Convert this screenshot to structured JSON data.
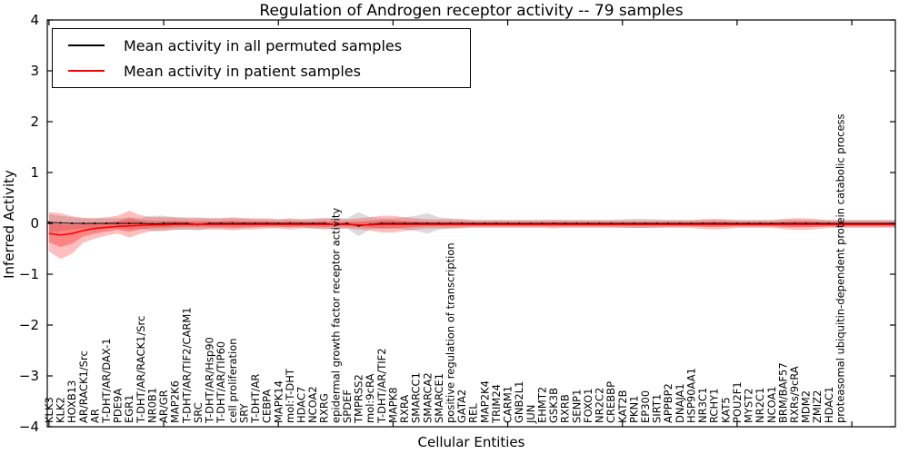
{
  "chart_data": {
    "type": "line",
    "title": "Regulation of Androgen receptor activity -- 79 samples",
    "xlabel": "Cellular Entities",
    "ylabel": "Inferred Activity",
    "ylim": [
      -4,
      4
    ],
    "xlim": [
      -0.15,
      73.8
    ],
    "y_ticks": [
      4,
      3,
      2,
      1,
      0,
      -1,
      -2,
      -3,
      -4
    ],
    "x_axis_ticks": [
      0,
      10,
      20,
      30,
      40,
      50,
      60,
      70
    ],
    "grid": false,
    "legend": {
      "position": "upper-left",
      "entries": [
        {
          "label": "Mean activity in all permuted samples",
          "color": "#000000"
        },
        {
          "label": "Mean activity in patient samples",
          "color": "#ff0000"
        }
      ]
    },
    "colors": {
      "permuted_line": "#000000",
      "permuted_band": "#999999",
      "patient_line": "#ff0000",
      "patient_band": "#ff0000",
      "axis": "#000000"
    },
    "inner_band_fraction": 0.5,
    "categories": [
      "KLK3",
      "KLK2",
      "HOXB13",
      "AR/RACK1/Src",
      "AR",
      "T-DHT/AR/DAX-1",
      "PDE9A",
      "EGR1",
      "T-DHT/AR/RACK1/Src",
      "NR0B1",
      "AR/GR",
      "MAP2K6",
      "T-DHT/AR/TIF2/CARM1",
      "SRC",
      "T-DHT/AR/Hsp90",
      "T-DHT/AR/TIP60",
      "cell proliferation",
      "SRY",
      "T-DHT/AR",
      "CEBPA",
      "MAPK14",
      "mol:T-DHT",
      "HDAC7",
      "NCOA2",
      "RXRG",
      "epidermal growth factor receptor activity",
      "SPDEF",
      "TMPRSS2",
      "mol:9cRA",
      "T-DHT/AR/TIF2",
      "MAPK8",
      "RXRA",
      "SMARCC1",
      "SMARCA2",
      "SMARCE1",
      "positive regulation of transcription",
      "GATA2",
      "REL",
      "MAP2K4",
      "TRIM24",
      "CARM1",
      "GNB2L1",
      "JUN",
      "EHMT2",
      "GSK3B",
      "RXRB",
      "SENP1",
      "FOXO1",
      "NR2C2",
      "CREBBP",
      "KAT2B",
      "PKN1",
      "EP300",
      "SIRT1",
      "APPBP2",
      "DNAJA1",
      "HSP90AA1",
      "NR3C1",
      "RCHY1",
      "KAT5",
      "POU2F1",
      "MYST2",
      "NR2C1",
      "NCOA1",
      "BRM/BAF57",
      "RXRs/9cRA",
      "MDM2",
      "ZMIZ2",
      "HDAC1",
      "proteasomal ubiquitin-dependent protein catabolic process"
    ],
    "series": [
      {
        "name": "permuted_mean",
        "values": [
          0.02,
          0.01,
          0,
          0,
          0,
          0,
          0,
          0,
          0,
          -0.01,
          0,
          0,
          0,
          -0.02,
          0,
          0,
          0,
          0,
          0,
          0,
          0,
          0,
          0,
          0,
          0,
          -0.02,
          0,
          -0.05,
          -0.02,
          0,
          0,
          0,
          0,
          0,
          0,
          0,
          0,
          0,
          0,
          0,
          0,
          0,
          0,
          0,
          0,
          0,
          0,
          0,
          0,
          0,
          0,
          0,
          0,
          0,
          0,
          0,
          0,
          0,
          0,
          0,
          0,
          0,
          0,
          0,
          0,
          0,
          0,
          0,
          0,
          0
        ]
      },
      {
        "name": "permuted_band_hi",
        "values": [
          0.18,
          0.15,
          0.12,
          0.1,
          0.1,
          0.1,
          0.1,
          0.12,
          0.1,
          0.15,
          0.15,
          0.12,
          0.12,
          0.12,
          0.1,
          0.1,
          0.1,
          0.1,
          0.08,
          0.08,
          0.08,
          0.08,
          0.08,
          0.1,
          0.1,
          0.12,
          0.1,
          0.22,
          0.12,
          0.1,
          0.1,
          0.12,
          0.15,
          0.2,
          0.12,
          0.1,
          0.08,
          0.07,
          0.07,
          0.07,
          0.07,
          0.07,
          0.07,
          0.07,
          0.07,
          0.07,
          0.07,
          0.07,
          0.07,
          0.07,
          0.08,
          0.09,
          0.09,
          0.08,
          0.07,
          0.07,
          0.07,
          0.07,
          0.07,
          0.07,
          0.07,
          0.07,
          0.07,
          0.07,
          0.08,
          0.08,
          0.07,
          0.07,
          0.07,
          0.07
        ]
      },
      {
        "name": "permuted_band_lo",
        "values": [
          -0.18,
          -0.15,
          -0.12,
          -0.1,
          -0.1,
          -0.1,
          -0.1,
          -0.12,
          -0.1,
          -0.15,
          -0.15,
          -0.12,
          -0.12,
          -0.14,
          -0.1,
          -0.1,
          -0.1,
          -0.1,
          -0.08,
          -0.08,
          -0.08,
          -0.08,
          -0.08,
          -0.1,
          -0.1,
          -0.12,
          -0.1,
          -0.25,
          -0.12,
          -0.1,
          -0.1,
          -0.12,
          -0.15,
          -0.2,
          -0.12,
          -0.1,
          -0.08,
          -0.07,
          -0.07,
          -0.07,
          -0.07,
          -0.07,
          -0.07,
          -0.07,
          -0.07,
          -0.07,
          -0.07,
          -0.07,
          -0.07,
          -0.07,
          -0.08,
          -0.09,
          -0.09,
          -0.08,
          -0.07,
          -0.07,
          -0.07,
          -0.07,
          -0.07,
          -0.07,
          -0.07,
          -0.07,
          -0.07,
          -0.07,
          -0.08,
          -0.08,
          -0.07,
          -0.07,
          -0.07,
          -0.07
        ]
      },
      {
        "name": "patient_mean",
        "values": [
          -0.2,
          -0.23,
          -0.2,
          -0.14,
          -0.1,
          -0.08,
          -0.06,
          -0.05,
          -0.04,
          -0.03,
          -0.03,
          -0.02,
          -0.02,
          -0.02,
          -0.02,
          -0.02,
          -0.02,
          -0.02,
          -0.02,
          -0.02,
          -0.02,
          -0.02,
          -0.02,
          -0.02,
          -0.02,
          -0.02,
          -0.02,
          -0.03,
          -0.03,
          -0.02,
          -0.02,
          -0.02,
          -0.02,
          -0.02,
          -0.02,
          -0.02,
          -0.02,
          -0.02,
          -0.02,
          -0.02,
          -0.02,
          -0.02,
          -0.02,
          -0.02,
          -0.02,
          -0.02,
          -0.02,
          -0.02,
          -0.02,
          -0.02,
          -0.02,
          -0.02,
          -0.02,
          -0.02,
          -0.02,
          -0.02,
          -0.02,
          -0.02,
          -0.02,
          -0.02,
          -0.02,
          -0.02,
          -0.02,
          -0.02,
          -0.02,
          -0.02,
          -0.02,
          -0.02,
          -0.02,
          -0.02
        ]
      },
      {
        "name": "patient_band_hi",
        "values": [
          0.22,
          0.2,
          0.14,
          0.11,
          0.1,
          0.12,
          0.15,
          0.25,
          0.16,
          0.12,
          0.12,
          0.12,
          0.1,
          0.1,
          0.1,
          0.1,
          0.12,
          0.1,
          0.1,
          0.1,
          0.08,
          0.1,
          0.08,
          0.08,
          0.1,
          0.08,
          0.08,
          0.1,
          0.12,
          0.15,
          0.15,
          0.12,
          0.1,
          0.08,
          0.08,
          0.08,
          0.08,
          0.06,
          0.06,
          0.06,
          0.06,
          0.06,
          0.06,
          0.06,
          0.07,
          0.06,
          0.06,
          0.06,
          0.06,
          0.06,
          0.06,
          0.06,
          0.06,
          0.06,
          0.06,
          0.06,
          0.06,
          0.08,
          0.09,
          0.08,
          0.06,
          0.06,
          0.06,
          0.06,
          0.08,
          0.1,
          0.1,
          0.08,
          0.06,
          0.06
        ]
      },
      {
        "name": "patient_band_lo",
        "values": [
          -0.55,
          -0.7,
          -0.6,
          -0.38,
          -0.3,
          -0.24,
          -0.2,
          -0.28,
          -0.2,
          -0.15,
          -0.14,
          -0.13,
          -0.12,
          -0.12,
          -0.12,
          -0.12,
          -0.14,
          -0.12,
          -0.12,
          -0.1,
          -0.1,
          -0.12,
          -0.1,
          -0.1,
          -0.12,
          -0.1,
          -0.1,
          -0.12,
          -0.14,
          -0.18,
          -0.18,
          -0.15,
          -0.12,
          -0.1,
          -0.1,
          -0.1,
          -0.1,
          -0.09,
          -0.09,
          -0.09,
          -0.09,
          -0.09,
          -0.09,
          -0.09,
          -0.1,
          -0.09,
          -0.09,
          -0.09,
          -0.09,
          -0.09,
          -0.09,
          -0.09,
          -0.09,
          -0.09,
          -0.09,
          -0.09,
          -0.09,
          -0.11,
          -0.12,
          -0.11,
          -0.09,
          -0.09,
          -0.09,
          -0.09,
          -0.11,
          -0.13,
          -0.13,
          -0.11,
          -0.09,
          -0.09
        ]
      }
    ]
  }
}
